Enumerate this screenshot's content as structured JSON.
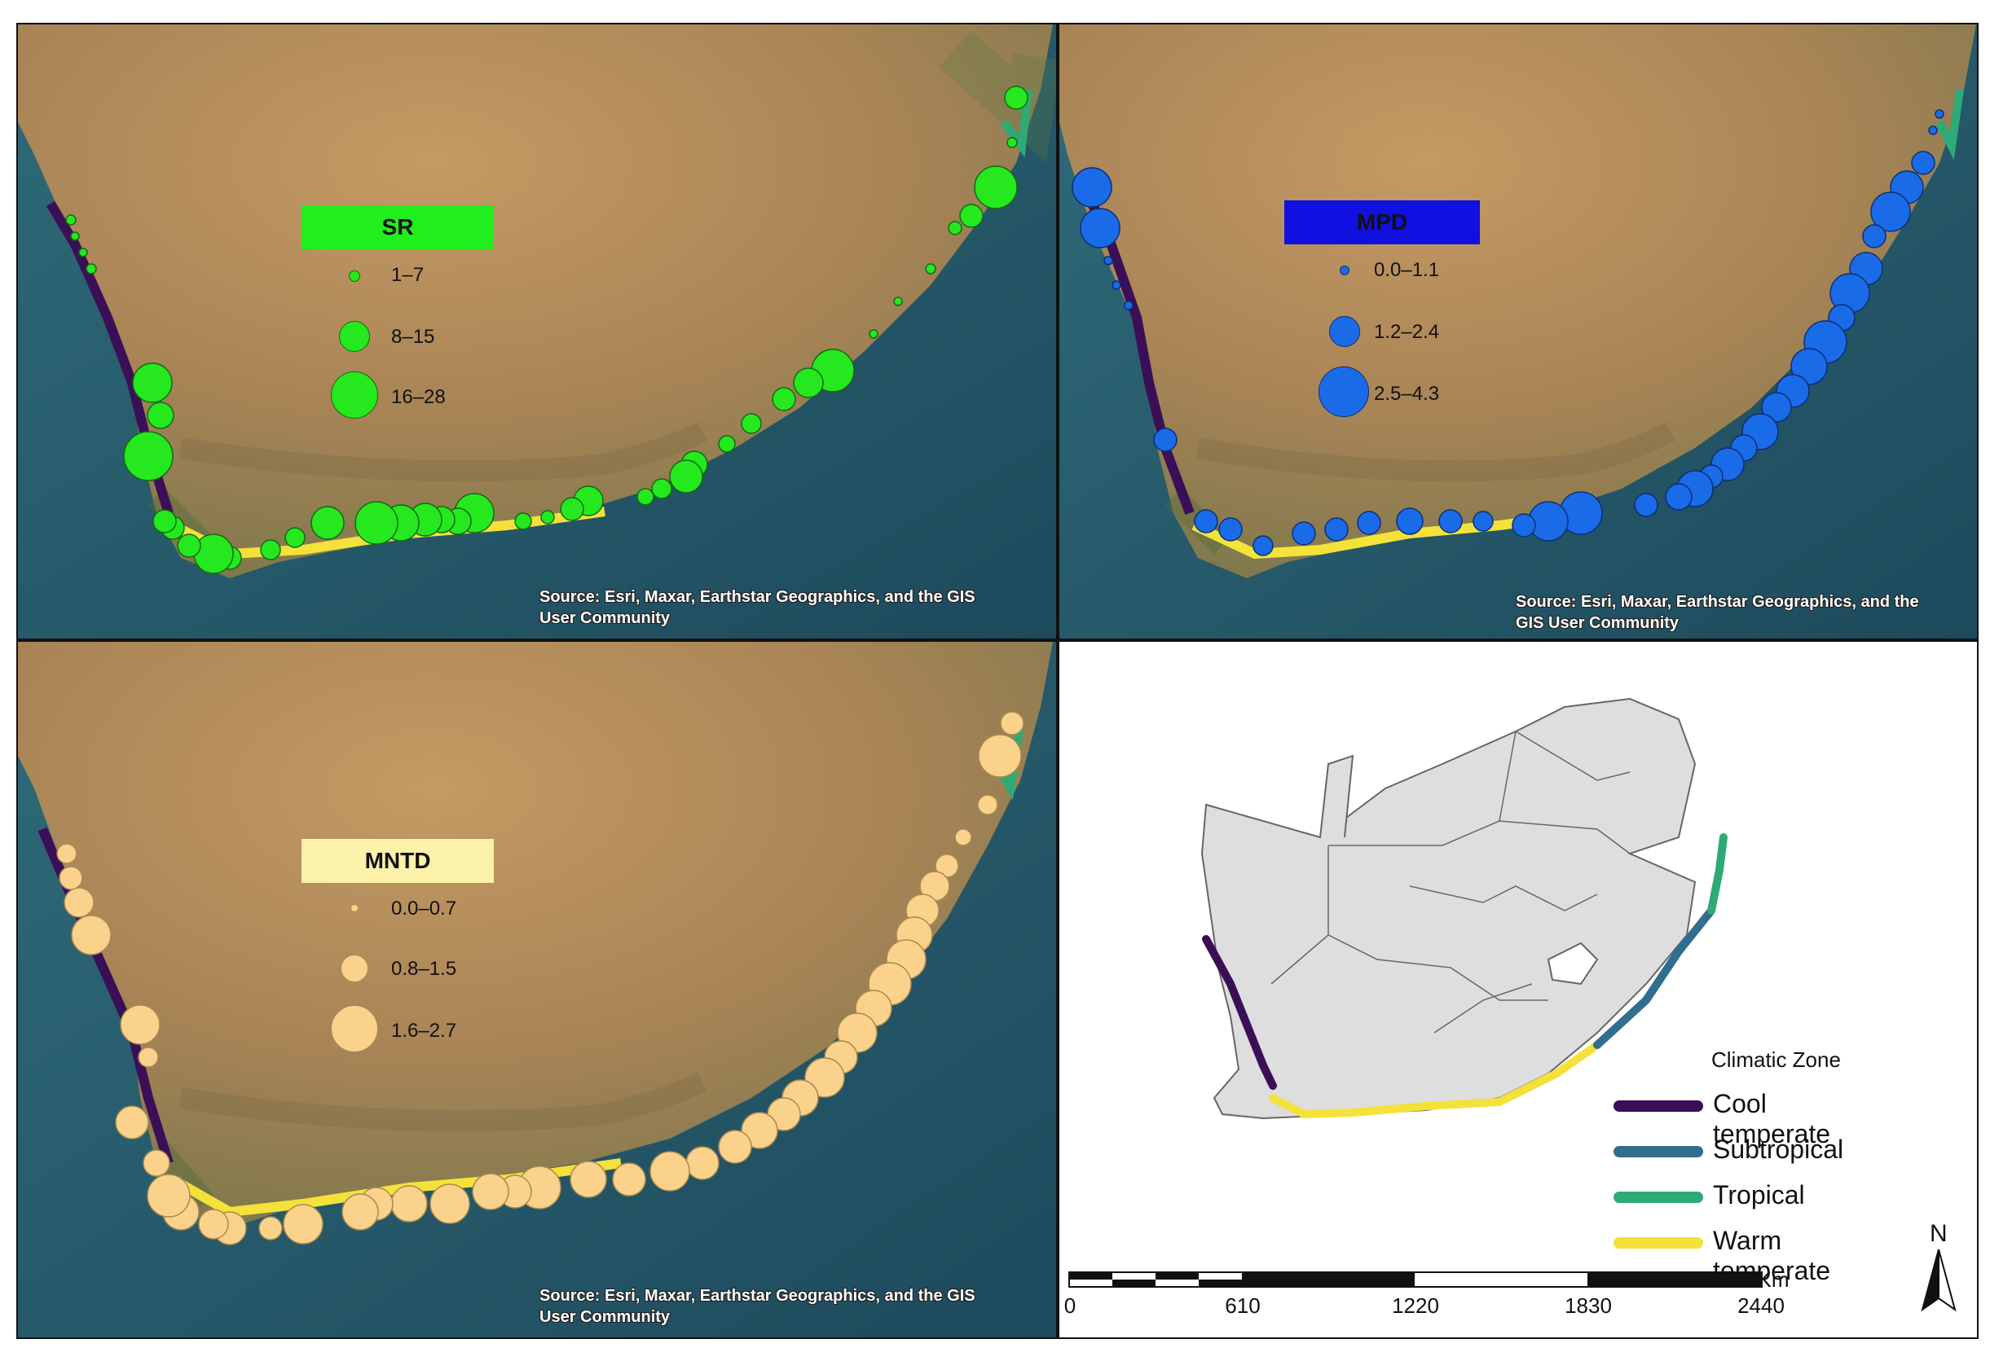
{
  "colors": {
    "cool_temperate": "#3b0f57",
    "subtropical": "#2f6e8f",
    "tropical": "#2eaa77",
    "warm_temperate": "#f4e23a",
    "sr_marker": "#25e81f",
    "mpd_marker": "#1a6be8",
    "mntd_marker": "#fbd28c",
    "sr_legend_bg": "#21ee1d",
    "mpd_legend_bg": "#1010e0",
    "mntd_legend_bg": "#fcf1a8"
  },
  "panels": {
    "sr": {
      "legend_title": "SR",
      "classes": [
        "1–7",
        "8–15",
        "16–28"
      ],
      "credit": [
        "Source: Esri, Maxar, Earthstar Geographics, and the GIS",
        "User Community"
      ]
    },
    "mpd": {
      "legend_title": "MPD",
      "classes": [
        "0.0–1.1",
        "1.2–2.4",
        "2.5–4.3"
      ],
      "credit": [
        "Source: Esri, Maxar, Earthstar Geographics, and the",
        "GIS User Community"
      ]
    },
    "mntd": {
      "legend_title": "MNTD",
      "classes": [
        "0.0–0.7",
        "0.8–1.5",
        "1.6–2.7"
      ],
      "credit": [
        "Source: Esri, Maxar, Earthstar Geographics, and the GIS",
        "User Community"
      ]
    }
  },
  "zone_legend": {
    "title": "Climatic Zone",
    "zones": [
      "Cool temperate",
      "Subtropical",
      "Tropical",
      "Warm temperate"
    ]
  },
  "scale_bar": {
    "unit": "Km",
    "labels": [
      "0",
      "610",
      "1220",
      "1830",
      "2440"
    ]
  },
  "north_arrow": "N"
}
